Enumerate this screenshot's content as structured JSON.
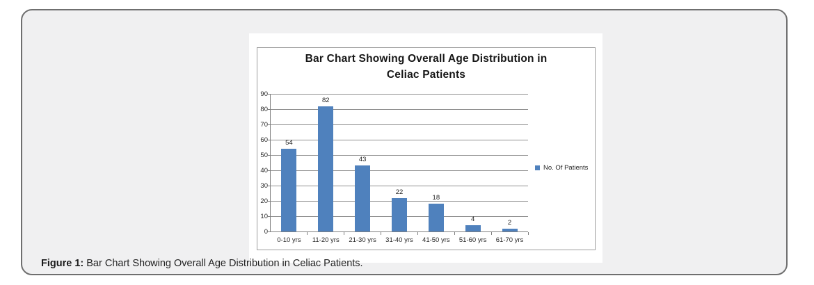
{
  "figure": {
    "caption_label": "Figure 1:",
    "caption_text": " Bar Chart Showing Overall Age Distribution in Celiac Patients."
  },
  "chart_data": {
    "type": "bar",
    "title_line1": "Bar Chart Showing Overall Age Distribution in",
    "title_line2": "Celiac Patients",
    "categories": [
      "0-10 yrs",
      "11-20 yrs",
      "21-30 yrs",
      "31-40 yrs",
      "41-50 yrs",
      "51-60 yrs",
      "61-70 yrs"
    ],
    "values": [
      54,
      82,
      43,
      22,
      18,
      4,
      2
    ],
    "series_name": "No. Of Patients",
    "y_ticks": [
      0,
      10,
      20,
      30,
      40,
      50,
      60,
      70,
      80,
      90
    ],
    "ylim": [
      0,
      90
    ],
    "grid": true,
    "legend_position": "right",
    "bar_color": "#4F81BD",
    "gridline_color": "#8F8F8F"
  }
}
